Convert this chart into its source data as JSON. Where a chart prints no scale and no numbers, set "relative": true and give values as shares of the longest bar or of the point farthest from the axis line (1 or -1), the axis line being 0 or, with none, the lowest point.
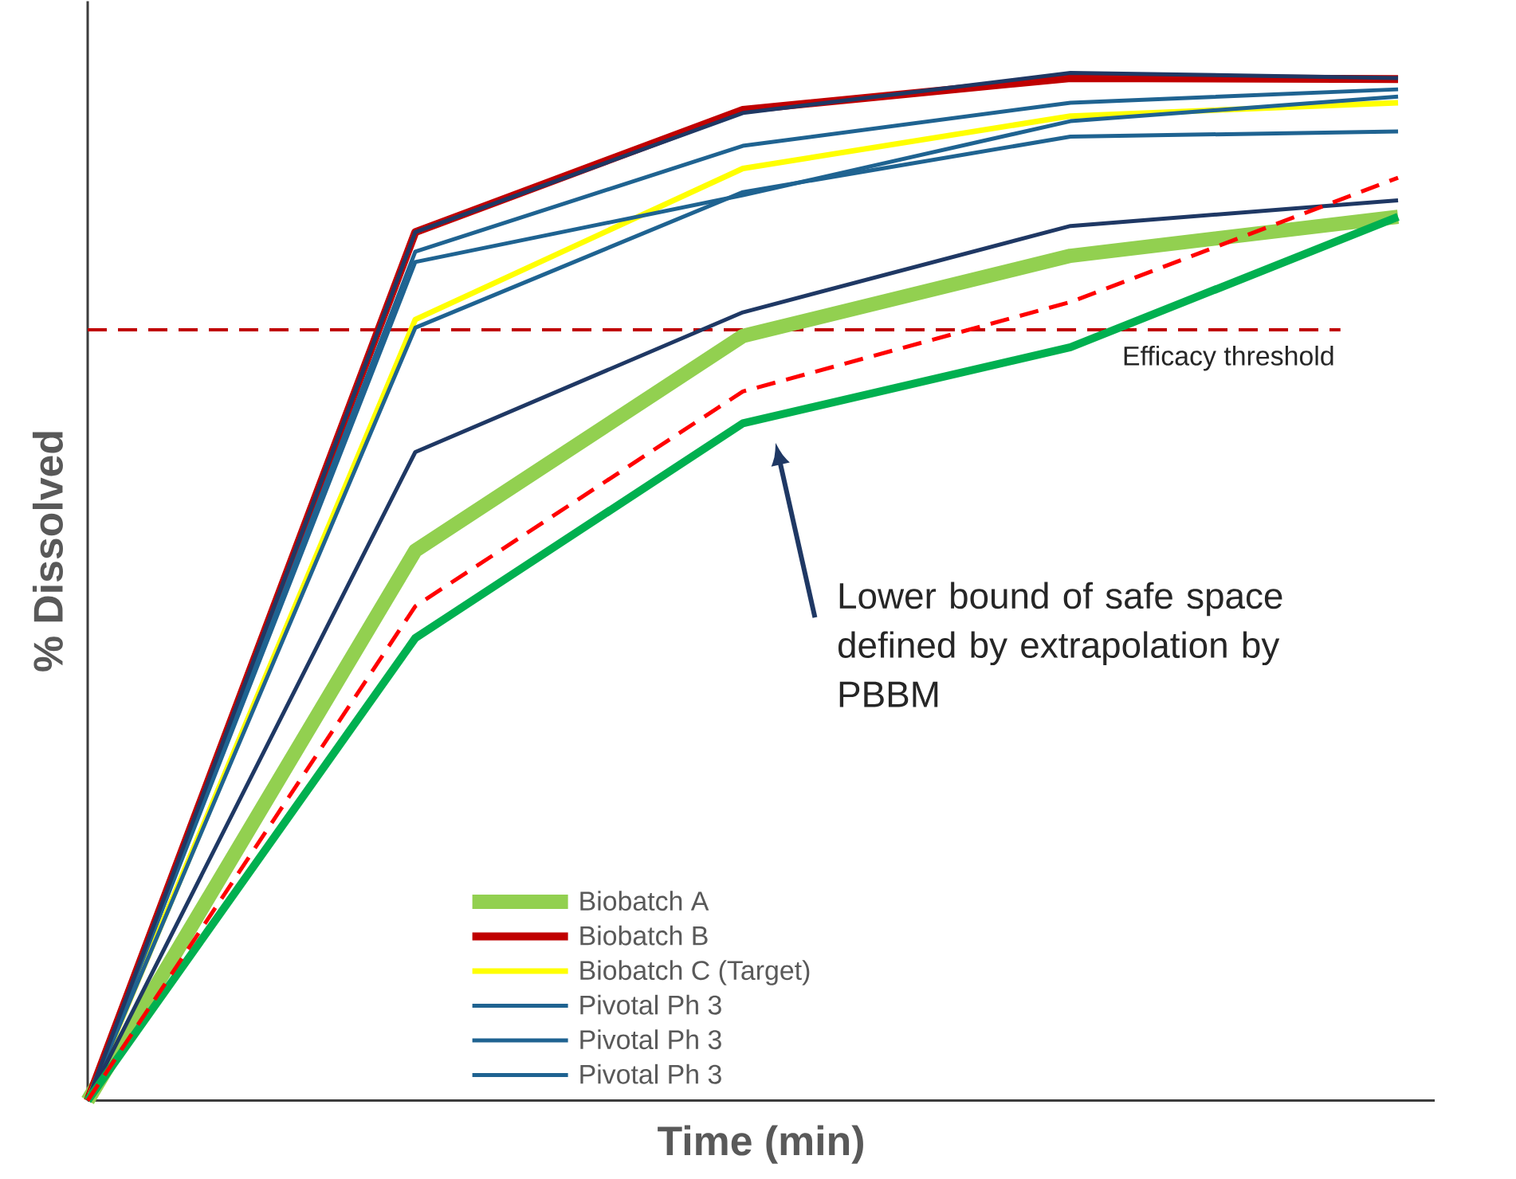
{
  "chart_data": {
    "type": "line",
    "relative": true,
    "xlabel": "Time (min)",
    "ylabel": "% Dissolved",
    "categories": [
      null,
      null,
      null,
      null,
      null
    ],
    "legend": "bottom",
    "marker": "none",
    "series": [
      {
        "name": "Biobatch  A",
        "color": "#92d050",
        "values": [
          0,
          0.535,
          0.744,
          0.822,
          0.86
        ]
      },
      {
        "name": "Biobatch B",
        "color": "#c00000",
        "values": [
          0,
          0.845,
          0.964,
          0.995,
          0.994
        ]
      },
      {
        "name": "Biobatch C (Target)",
        "color": "#ffff00",
        "values": [
          0,
          0.76,
          0.907,
          0.958,
          0.971
        ]
      },
      {
        "name": "Pivotal Ph 3",
        "color": "#1f6391",
        "values": [
          0,
          0.826,
          0.929,
          0.971,
          0.984
        ]
      },
      {
        "name": "Pivotal Ph 3",
        "color": "#1f6391",
        "values": [
          0,
          0.816,
          0.881,
          0.953,
          0.977
        ]
      },
      {
        "name": "Pivotal Ph 3",
        "color": "#1f6391",
        "values": [
          0,
          0.752,
          0.884,
          0.938,
          0.943
        ]
      },
      {
        "color": "#1f3864",
        "values": [
          0,
          0.845,
          0.961,
          1.0,
          0.995
        ]
      },
      {
        "color": "#1f3864",
        "values": [
          0,
          0.631,
          0.767,
          0.851,
          0.876
        ]
      },
      {
        "color": "#00b050",
        "values": [
          0,
          0.45,
          0.659,
          0.733,
          0.86
        ]
      },
      {
        "color": "#ff0000",
        "line_style": "dashed",
        "values": [
          0,
          0.481,
          0.69,
          0.777,
          0.898
        ]
      }
    ],
    "ref_lines": [
      {
        "axis": "y",
        "value": 0.75,
        "label": "Efficacy threshold",
        "color": "#c00000",
        "line_style": "dashed"
      }
    ],
    "annotations": [
      "Lower bound of safe space defined by extrapolation by PBBM"
    ]
  }
}
